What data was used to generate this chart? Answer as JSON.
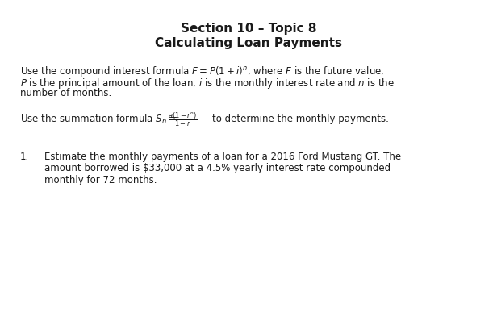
{
  "title_line1": "Section 10 – Topic 8",
  "title_line2": "Calculating Loan Payments",
  "background_color": "#ffffff",
  "text_color": "#1a1a1a",
  "title_fontsize": 11.0,
  "body_fontsize": 8.5,
  "figsize": [
    6.16,
    4.14
  ],
  "dpi": 100,
  "para1_line1": "Use the compound interest formula $F = P(1 + i)^{n}$, where $F$ is the future value,",
  "para1_line2": "$P$ is the principal amount of the loan, $i$ is the monthly interest rate and $n$ is the",
  "para1_line3": "number of months.",
  "para2_pre": "Use the summation formula $S_{n}$ =",
  "para2_frac": "$\\frac{a(1-r^{n})}{1-r}$",
  "para2_post": "to determine the monthly payments.",
  "para3_line1": "Estimate the monthly payments of a loan for a 2016 Ford Mustang GT. The",
  "para3_line2": "amount borrowed is $33,000 at a 4.5% yearly interest rate compounded",
  "para3_line3": "monthly for 72 months."
}
